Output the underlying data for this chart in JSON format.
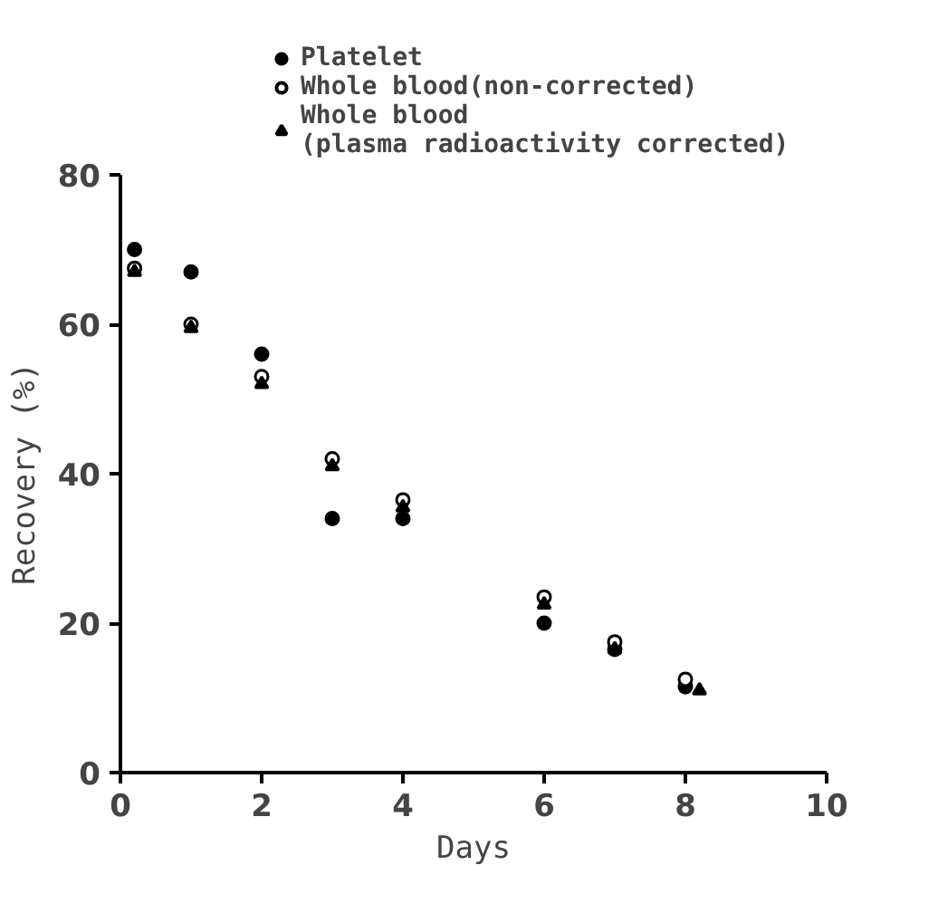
{
  "chart_data": {
    "type": "scatter",
    "xlabel": "Days",
    "ylabel": "Recovery (%)",
    "xlim": [
      0,
      10
    ],
    "ylim": [
      0,
      80
    ],
    "xticks": [
      0,
      2,
      4,
      6,
      8,
      10
    ],
    "yticks": [
      0,
      20,
      40,
      60,
      80
    ],
    "grid": false,
    "legend": "top",
    "series": [
      {
        "name": "Platelet",
        "color": "#000000",
        "marker": "circle",
        "x": [
          0.2,
          1,
          2,
          3,
          4,
          6,
          7,
          8
        ],
        "values": [
          70,
          67,
          56,
          34,
          34,
          20,
          16.5,
          11.5
        ]
      },
      {
        "name": "Whole blood(non-corrected)",
        "color": "#000000",
        "marker": "circle_open",
        "x": [
          0.2,
          1,
          2,
          3,
          4,
          6,
          7,
          8
        ],
        "values": [
          67.5,
          60,
          53,
          42,
          36.5,
          23.5,
          17.5,
          12.5
        ]
      },
      {
        "name": "Whole blood\n(plasma radioactivity corrected)",
        "color": "#000000",
        "marker": "triangle",
        "x": [
          0.2,
          1,
          2,
          3,
          4,
          6,
          7,
          8.2
        ],
        "values": [
          67,
          59.5,
          52,
          41,
          35.5,
          22.5,
          16.5,
          11
        ]
      }
    ]
  }
}
